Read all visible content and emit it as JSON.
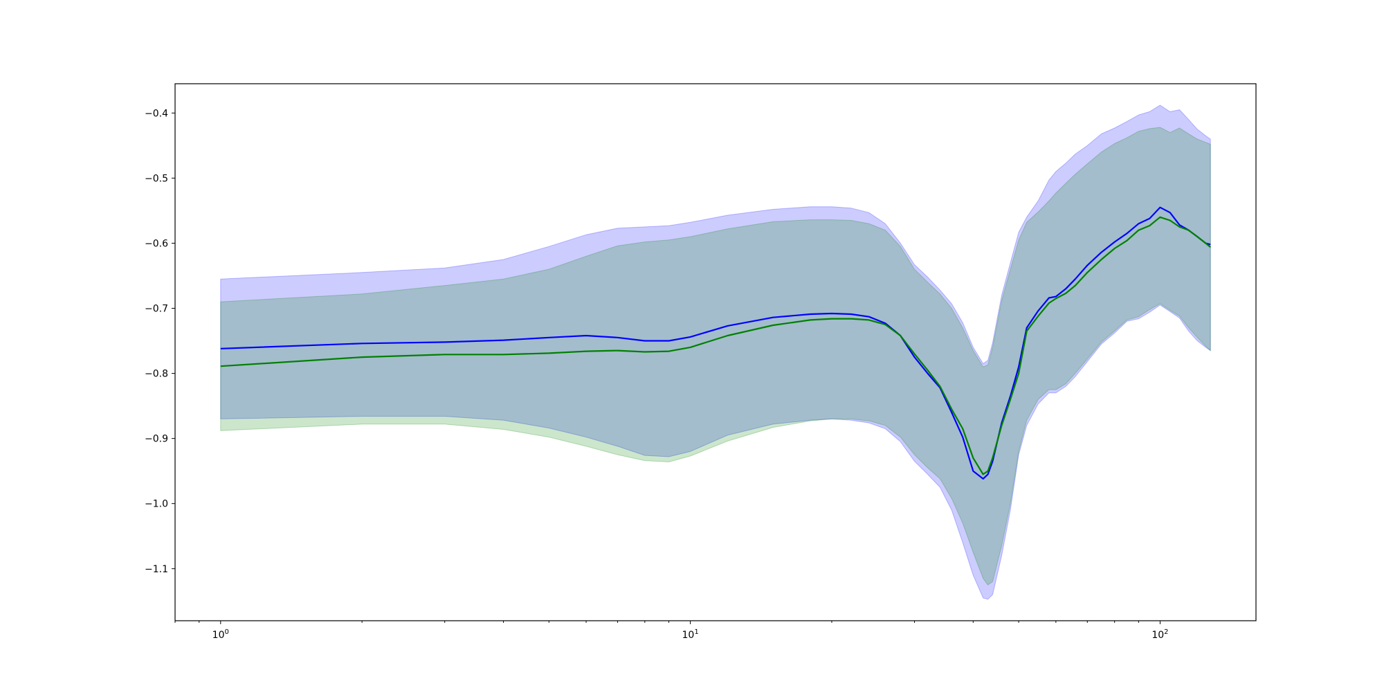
{
  "chart_data": {
    "type": "line",
    "title": "",
    "xlabel": "",
    "ylabel": "",
    "xscale": "log",
    "xlim": [
      0.8,
      160
    ],
    "ylim": [
      -1.18,
      -0.355
    ],
    "grid": false,
    "legend": "none",
    "x_ticks": [
      {
        "value": 1,
        "base": "10",
        "exp": "0"
      },
      {
        "value": 10,
        "base": "10",
        "exp": "1"
      },
      {
        "value": 100,
        "base": "10",
        "exp": "2"
      }
    ],
    "y_ticks": [
      {
        "value": -0.4,
        "label": "−0.4"
      },
      {
        "value": -0.5,
        "label": "−0.5"
      },
      {
        "value": -0.6,
        "label": "−0.6"
      },
      {
        "value": -0.7,
        "label": "−0.7"
      },
      {
        "value": -0.8,
        "label": "−0.8"
      },
      {
        "value": -0.9,
        "label": "−0.9"
      },
      {
        "value": -1.0,
        "label": "−1.0"
      },
      {
        "value": -1.1,
        "label": "−1.1"
      }
    ],
    "series": [
      {
        "color": "#0000ff",
        "band_color": "#0000ff",
        "band_opacity": 0.2,
        "x": [
          1,
          2,
          3,
          4,
          5,
          6,
          7,
          8,
          9,
          10,
          12,
          15,
          18,
          20,
          22,
          24,
          26,
          28,
          30,
          32,
          34,
          36,
          38,
          40,
          42,
          43,
          44,
          46,
          48,
          50,
          52,
          55,
          58,
          60,
          63,
          66,
          70,
          75,
          80,
          85,
          90,
          95,
          100,
          105,
          110,
          115,
          120,
          125,
          128
        ],
        "mean": [
          -0.762,
          -0.754,
          -0.752,
          -0.749,
          -0.745,
          -0.742,
          -0.745,
          -0.75,
          -0.75,
          -0.744,
          -0.727,
          -0.714,
          -0.709,
          -0.708,
          -0.709,
          -0.713,
          -0.723,
          -0.742,
          -0.775,
          -0.8,
          -0.822,
          -0.86,
          -0.898,
          -0.95,
          -0.962,
          -0.955,
          -0.935,
          -0.876,
          -0.835,
          -0.79,
          -0.73,
          -0.704,
          -0.684,
          -0.682,
          -0.67,
          -0.655,
          -0.634,
          -0.614,
          -0.598,
          -0.585,
          -0.57,
          -0.562,
          -0.545,
          -0.553,
          -0.572,
          -0.58,
          -0.59,
          -0.6,
          -0.602
        ],
        "upper": [
          -0.655,
          -0.645,
          -0.638,
          -0.625,
          -0.605,
          -0.587,
          -0.577,
          -0.575,
          -0.573,
          -0.568,
          -0.557,
          -0.548,
          -0.544,
          -0.544,
          -0.546,
          -0.553,
          -0.57,
          -0.6,
          -0.633,
          -0.652,
          -0.672,
          -0.693,
          -0.722,
          -0.76,
          -0.785,
          -0.78,
          -0.753,
          -0.68,
          -0.63,
          -0.583,
          -0.56,
          -0.535,
          -0.503,
          -0.49,
          -0.477,
          -0.463,
          -0.45,
          -0.432,
          -0.423,
          -0.413,
          -0.403,
          -0.398,
          -0.388,
          -0.398,
          -0.395,
          -0.41,
          -0.425,
          -0.435,
          -0.44
        ],
        "lower": [
          -0.87,
          -0.866,
          -0.866,
          -0.872,
          -0.884,
          -0.898,
          -0.912,
          -0.926,
          -0.928,
          -0.92,
          -0.895,
          -0.878,
          -0.872,
          -0.87,
          -0.872,
          -0.876,
          -0.885,
          -0.905,
          -0.935,
          -0.955,
          -0.975,
          -1.01,
          -1.06,
          -1.11,
          -1.145,
          -1.147,
          -1.14,
          -1.08,
          -1.01,
          -0.925,
          -0.88,
          -0.847,
          -0.83,
          -0.83,
          -0.82,
          -0.805,
          -0.782,
          -0.755,
          -0.738,
          -0.72,
          -0.716,
          -0.706,
          -0.695,
          -0.705,
          -0.715,
          -0.735,
          -0.75,
          -0.76,
          -0.765
        ]
      },
      {
        "color": "#008000",
        "band_color": "#008000",
        "band_opacity": 0.2,
        "x": [
          1,
          2,
          3,
          4,
          5,
          6,
          7,
          8,
          9,
          10,
          12,
          15,
          18,
          20,
          22,
          24,
          26,
          28,
          30,
          32,
          34,
          36,
          38,
          40,
          42,
          43,
          44,
          46,
          48,
          50,
          52,
          55,
          58,
          60,
          63,
          66,
          70,
          75,
          80,
          85,
          90,
          95,
          100,
          105,
          110,
          115,
          120,
          125,
          128
        ],
        "mean": [
          -0.789,
          -0.775,
          -0.771,
          -0.771,
          -0.769,
          -0.766,
          -0.765,
          -0.767,
          -0.766,
          -0.76,
          -0.742,
          -0.726,
          -0.718,
          -0.716,
          -0.716,
          -0.718,
          -0.725,
          -0.742,
          -0.77,
          -0.795,
          -0.82,
          -0.855,
          -0.885,
          -0.93,
          -0.955,
          -0.95,
          -0.93,
          -0.88,
          -0.84,
          -0.8,
          -0.735,
          -0.712,
          -0.692,
          -0.685,
          -0.677,
          -0.665,
          -0.645,
          -0.625,
          -0.608,
          -0.596,
          -0.58,
          -0.573,
          -0.56,
          -0.565,
          -0.575,
          -0.58,
          -0.59,
          -0.6,
          -0.606
        ],
        "upper": [
          -0.69,
          -0.678,
          -0.665,
          -0.655,
          -0.64,
          -0.62,
          -0.604,
          -0.598,
          -0.595,
          -0.59,
          -0.578,
          -0.567,
          -0.564,
          -0.564,
          -0.565,
          -0.57,
          -0.58,
          -0.605,
          -0.64,
          -0.66,
          -0.678,
          -0.7,
          -0.73,
          -0.765,
          -0.79,
          -0.787,
          -0.76,
          -0.688,
          -0.64,
          -0.595,
          -0.568,
          -0.552,
          -0.535,
          -0.523,
          -0.508,
          -0.494,
          -0.478,
          -0.46,
          -0.447,
          -0.438,
          -0.428,
          -0.424,
          -0.422,
          -0.43,
          -0.423,
          -0.432,
          -0.44,
          -0.445,
          -0.448
        ],
        "lower": [
          -0.888,
          -0.878,
          -0.878,
          -0.886,
          -0.898,
          -0.912,
          -0.925,
          -0.934,
          -0.936,
          -0.927,
          -0.904,
          -0.883,
          -0.873,
          -0.87,
          -0.87,
          -0.873,
          -0.88,
          -0.898,
          -0.925,
          -0.945,
          -0.962,
          -0.992,
          -1.03,
          -1.075,
          -1.115,
          -1.125,
          -1.12,
          -1.065,
          -1.0,
          -0.92,
          -0.872,
          -0.84,
          -0.825,
          -0.825,
          -0.816,
          -0.8,
          -0.778,
          -0.752,
          -0.735,
          -0.718,
          -0.713,
          -0.702,
          -0.693,
          -0.703,
          -0.712,
          -0.73,
          -0.745,
          -0.758,
          -0.765
        ]
      }
    ]
  }
}
